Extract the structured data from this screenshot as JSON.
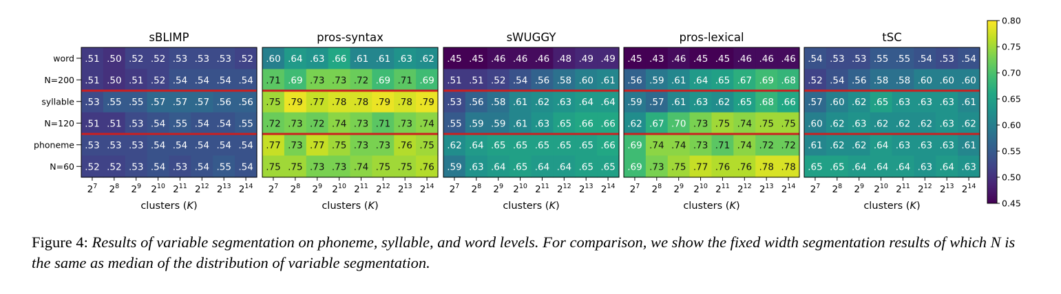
{
  "chart_data": {
    "type": "heatmap",
    "rows": [
      "word",
      "N=200",
      "syllable",
      "N=120",
      "phoneme",
      "N=60"
    ],
    "x_ticks": [
      {
        "base": "2",
        "exp": "7"
      },
      {
        "base": "2",
        "exp": "8"
      },
      {
        "base": "2",
        "exp": "9"
      },
      {
        "base": "2",
        "exp": "10"
      },
      {
        "base": "2",
        "exp": "11"
      },
      {
        "base": "2",
        "exp": "12"
      },
      {
        "base": "2",
        "exp": "13"
      },
      {
        "base": "2",
        "exp": "14"
      }
    ],
    "xlabel": {
      "prefix": "clusters (",
      "var": "K",
      "suffix": ")"
    },
    "colorbar": {
      "min": 0.45,
      "max": 0.8,
      "ticks": [
        "0.45",
        "0.50",
        "0.55",
        "0.60",
        "0.65",
        "0.70",
        "0.75",
        "0.80"
      ]
    },
    "separator_color": "#cc1f1f",
    "panels": [
      {
        "title": "sBLIMP",
        "values": [
          [
            0.51,
            0.5,
            0.52,
            0.52,
            0.53,
            0.53,
            0.53,
            0.52
          ],
          [
            0.51,
            0.5,
            0.51,
            0.52,
            0.54,
            0.54,
            0.54,
            0.54
          ],
          [
            0.53,
            0.55,
            0.55,
            0.57,
            0.57,
            0.57,
            0.56,
            0.56
          ],
          [
            0.51,
            0.51,
            0.53,
            0.54,
            0.55,
            0.54,
            0.54,
            0.55
          ],
          [
            0.53,
            0.53,
            0.53,
            0.54,
            0.54,
            0.54,
            0.54,
            0.54
          ],
          [
            0.52,
            0.52,
            0.53,
            0.54,
            0.53,
            0.54,
            0.55,
            0.54
          ]
        ]
      },
      {
        "title": "pros-syntax",
        "values": [
          [
            0.6,
            0.64,
            0.63,
            0.66,
            0.61,
            0.61,
            0.63,
            0.62
          ],
          [
            0.71,
            0.69,
            0.73,
            0.73,
            0.72,
            0.69,
            0.71,
            0.69
          ],
          [
            0.75,
            0.79,
            0.77,
            0.78,
            0.78,
            0.79,
            0.78,
            0.79
          ],
          [
            0.72,
            0.73,
            0.72,
            0.74,
            0.73,
            0.71,
            0.73,
            0.74
          ],
          [
            0.77,
            0.73,
            0.77,
            0.75,
            0.73,
            0.73,
            0.76,
            0.75
          ],
          [
            0.75,
            0.75,
            0.73,
            0.73,
            0.74,
            0.75,
            0.75,
            0.76
          ]
        ]
      },
      {
        "title": "sWUGGY",
        "values": [
          [
            0.45,
            0.45,
            0.46,
            0.46,
            0.46,
            0.48,
            0.49,
            0.49
          ],
          [
            0.51,
            0.51,
            0.52,
            0.54,
            0.56,
            0.58,
            0.6,
            0.61
          ],
          [
            0.53,
            0.56,
            0.58,
            0.61,
            0.62,
            0.63,
            0.64,
            0.64
          ],
          [
            0.55,
            0.59,
            0.59,
            0.61,
            0.63,
            0.65,
            0.66,
            0.66
          ],
          [
            0.62,
            0.64,
            0.65,
            0.65,
            0.65,
            0.65,
            0.65,
            0.66
          ],
          [
            0.59,
            0.63,
            0.64,
            0.65,
            0.64,
            0.64,
            0.65,
            0.65
          ]
        ]
      },
      {
        "title": "pros-lexical",
        "values": [
          [
            0.45,
            0.43,
            0.46,
            0.45,
            0.45,
            0.46,
            0.46,
            0.46
          ],
          [
            0.56,
            0.59,
            0.61,
            0.64,
            0.65,
            0.67,
            0.69,
            0.68
          ],
          [
            0.59,
            0.57,
            0.61,
            0.63,
            0.62,
            0.65,
            0.68,
            0.66
          ],
          [
            0.62,
            0.67,
            0.7,
            0.73,
            0.75,
            0.74,
            0.75,
            0.75
          ],
          [
            0.69,
            0.74,
            0.74,
            0.73,
            0.71,
            0.74,
            0.72,
            0.72
          ],
          [
            0.69,
            0.73,
            0.75,
            0.77,
            0.76,
            0.76,
            0.78,
            0.78
          ]
        ]
      },
      {
        "title": "tSC",
        "values": [
          [
            0.54,
            0.53,
            0.53,
            0.55,
            0.55,
            0.54,
            0.53,
            0.54
          ],
          [
            0.52,
            0.54,
            0.56,
            0.58,
            0.58,
            0.6,
            0.6,
            0.6
          ],
          [
            0.57,
            0.6,
            0.62,
            0.65,
            0.63,
            0.63,
            0.63,
            0.61
          ],
          [
            0.6,
            0.62,
            0.63,
            0.62,
            0.62,
            0.62,
            0.63,
            0.62
          ],
          [
            0.61,
            0.62,
            0.62,
            0.64,
            0.63,
            0.63,
            0.63,
            0.61
          ],
          [
            0.65,
            0.65,
            0.64,
            0.64,
            0.64,
            0.63,
            0.64,
            0.63
          ]
        ]
      }
    ]
  },
  "caption": {
    "label": "Figure 4:",
    "text": "Results of variable segmentation on phoneme, syllable, and word levels. For comparison, we show the fixed width segmentation results of which N is the same as median of the distribution of variable segmentation."
  }
}
